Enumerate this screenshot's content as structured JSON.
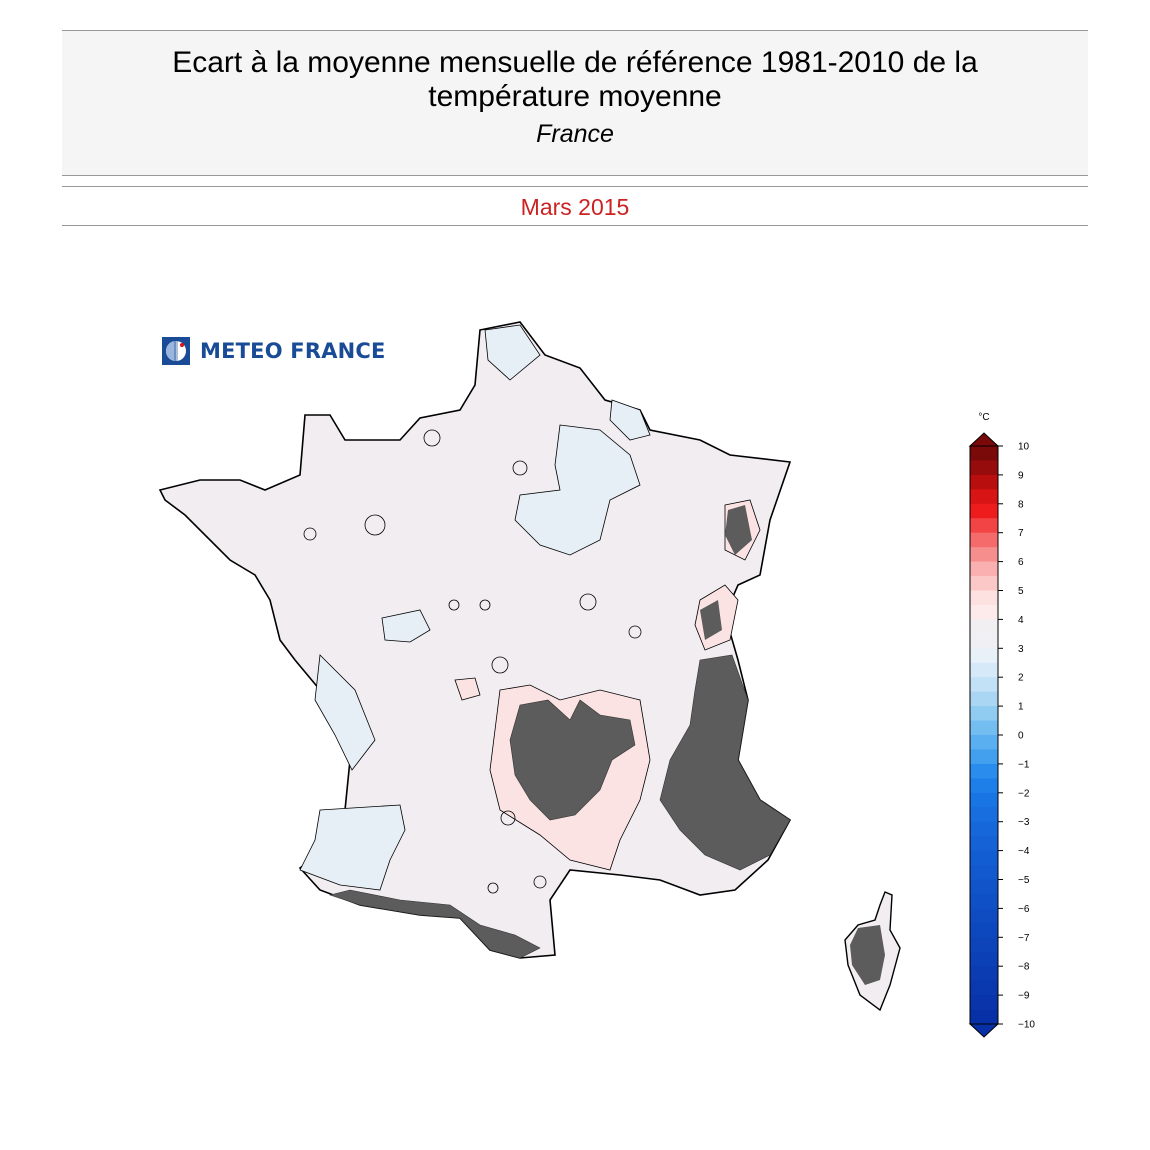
{
  "title": {
    "line1": "Ecart à la moyenne mensuelle de référence 1981-2010 de la",
    "line2": "température moyenne",
    "region": "France"
  },
  "period": "Mars 2015",
  "logo": {
    "text": "METEO FRANCE",
    "icon": "meteo-france-logo-icon"
  },
  "colorbar": {
    "unit": "°C",
    "ticks": [
      "10",
      "9",
      "8",
      "7",
      "6",
      "5",
      "4",
      "3",
      "2",
      "1",
      "0",
      "−1",
      "−2",
      "−3",
      "−4",
      "−5",
      "−6",
      "−7",
      "−8",
      "−9",
      "−10"
    ],
    "colors_top_to_bottom": [
      "#7a0a0a",
      "#960b0b",
      "#b80e0e",
      "#d81414",
      "#ee1c1c",
      "#f24444",
      "#f56a6a",
      "#f78e8e",
      "#fab0b0",
      "#fbc8c8",
      "#fde0e0",
      "#fdeaea",
      "#f2eff2",
      "#f0f0f4",
      "#e8f0f8",
      "#d6e9f8",
      "#c2e0f6",
      "#aad6f4",
      "#90cbf2",
      "#74bdf0",
      "#5aaff0",
      "#42a0ee",
      "#2a8cec",
      "#1f7fe8",
      "#1a75e4",
      "#186ddf",
      "#1667da",
      "#1462d6",
      "#135dd2",
      "#1258ce",
      "#1154ca",
      "#1050c6",
      "#0f4cc2",
      "#0e48be",
      "#0d44ba",
      "#0c40b6",
      "#0b3cb2",
      "#0a38ae",
      "#0934aa",
      "#0830a6"
    ]
  },
  "map": {
    "colors": {
      "near_zero": "#f1edf1",
      "slightly_negative": "#e6eef6",
      "slightly_positive": "#fbe3e3",
      "relief_mask": "#5c5c5c",
      "outline": "#000000"
    }
  }
}
